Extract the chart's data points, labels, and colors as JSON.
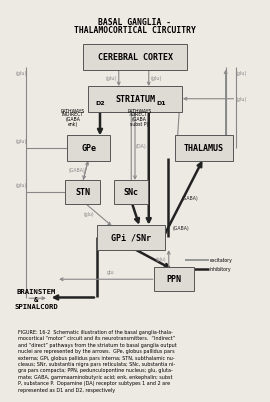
{
  "title_line1": "BASAL GANGLIA -",
  "title_line2": "THALAMOCORTICAL CIRCUITRY",
  "bg_color": "#ede9e3",
  "box_facecolor": "#dedad4",
  "box_edgecolor": "#555555",
  "gray": "#888888",
  "dark": "#222222",
  "figure_caption": "FIGURE: 16-2  Schematic illustration of the basal ganglia-thala-\nmocortical “motor” circuit and its neurotransmitters.  “Indirect”\nand “direct” pathways from the striatum to basal ganglia output\nnuclei are represented by the arrows.  GPe, globus pallidus pars\nexterna; GPi, globus pallidus pars interna; STN, subthalamic nu-\ncleaus; SNr, substantia nigra pars reticulata; SNc, substantia ni-\ngra pars compacta; PPN, pedunculopontine nucleus; glu, gluta-\nmate; GABA, gammaaminobutyric acid; enk, enkephalin; subst\nP, substance P.  Dopamine (DA) receptor subtypes 1 and 2 are\nrepresented as D1 and D2, respectively"
}
